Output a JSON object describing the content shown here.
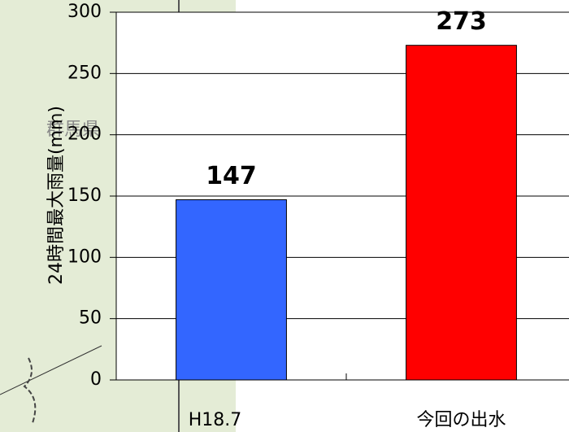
{
  "map": {
    "label": "群馬県"
  },
  "chart_data": {
    "type": "bar",
    "ylabel": "24時間最大雨量(mm)",
    "categories": [
      "H18.7",
      "今回の出水"
    ],
    "values": [
      147,
      273
    ],
    "colors": [
      "#3366ff",
      "#ff0000"
    ],
    "ylim": [
      0,
      300
    ],
    "yticks": [
      0,
      50,
      100,
      150,
      200,
      250,
      300
    ],
    "grid": true
  }
}
